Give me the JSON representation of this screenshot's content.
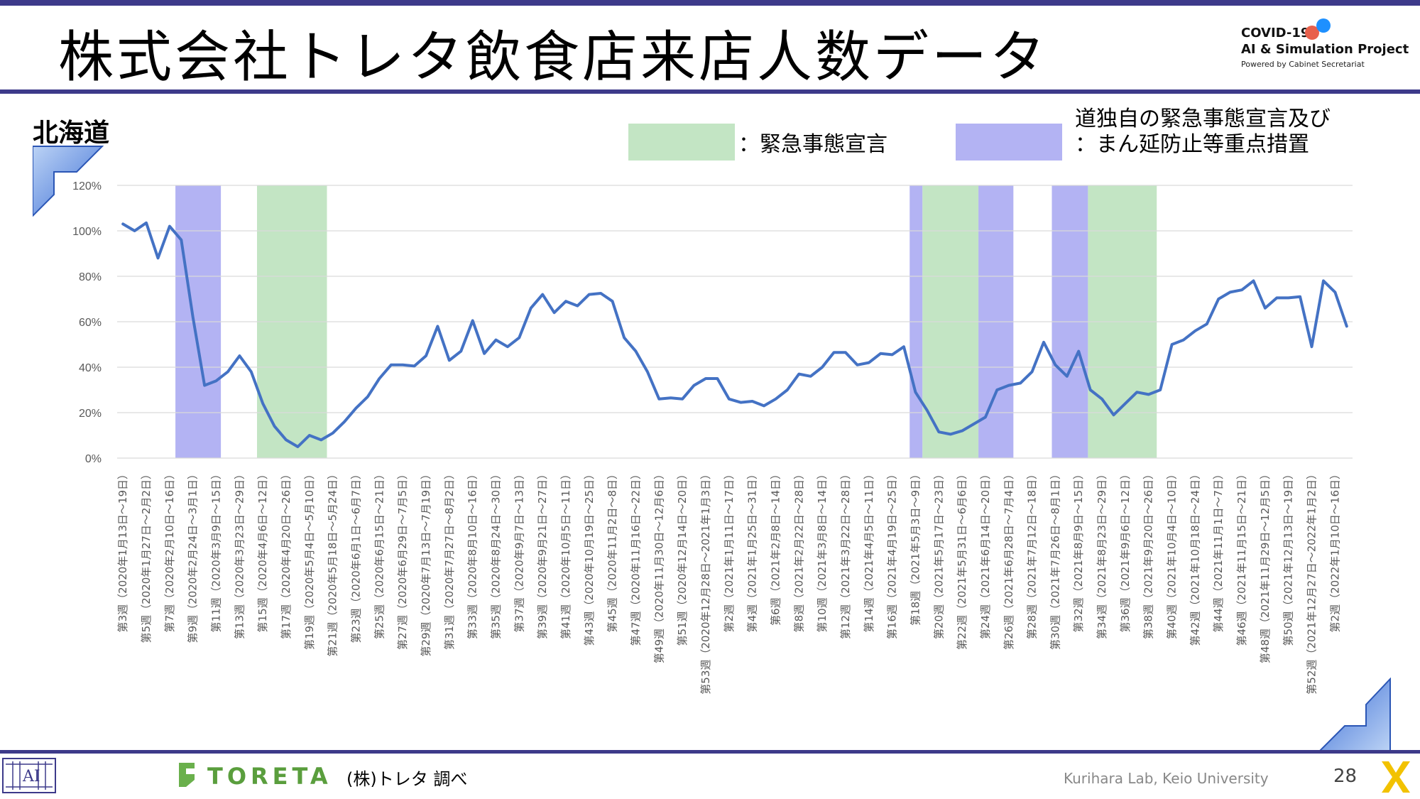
{
  "header": {
    "title": "株式会社トレタ飲食店来店人数データ",
    "project_line1": "COVID-19",
    "project_line2": "AI & Simulation Project",
    "project_line3": "Powered by Cabinet Secretariat"
  },
  "region": "北海道",
  "legend": {
    "emergency_label": "：緊急事態宣言",
    "measures_label_line1": "道独自の緊急事態宣言及び",
    "measures_label_line2": "：まん延防止等重点措置",
    "emergency_color": "#c3e5c4",
    "measures_color": "#b3b3f3"
  },
  "footer": {
    "brand": "TORETA",
    "source": "(株)トレタ 調べ",
    "lab": "Kurihara Lab, Keio University",
    "page": "28"
  },
  "chart_data": {
    "type": "line",
    "title": "",
    "xlabel": "",
    "ylabel": "",
    "ylim": [
      0,
      1.2
    ],
    "yticks": [
      "0%",
      "20%",
      "40%",
      "60%",
      "80%",
      "100%",
      "120%"
    ],
    "grid": true,
    "line_color": "#4472c4",
    "x_tick_labels": [
      "第3週（2020年1月13日～19日）",
      "第5週（2020年1月27日～2月2日）",
      "第7週（2020年2月10日～16日）",
      "第9週（2020年2月24日～3月1日）",
      "第11週（2020年3月9日～15日）",
      "第13週（2020年3月23日～29日）",
      "第15週（2020年4月6日～12日）",
      "第17週（2020年4月20日～26日）",
      "第19週（2020年5月4日～5月10日）",
      "第21週（2020年5月18日～5月24日）",
      "第23週（2020年6月1日～6月7日）",
      "第25週（2020年6月15日～21日）",
      "第27週（2020年6月29日～7月5日）",
      "第29週（2020年7月13日～7月19日）",
      "第31週（2020年7月27日～8月2日）",
      "第33週（2020年8月10日～16日）",
      "第35週（2020年8月24日～30日）",
      "第37週（2020年9月7日～13日）",
      "第39週（2020年9月21日～27日）",
      "第41週（2020年10月5日～11日）",
      "第43週（2020年10月19日～25日）",
      "第45週（2020年11月2日～8日）",
      "第47週（2020年11月16日～22日）",
      "第49週（2020年11月30日～12月6日）",
      "第51週（2020年12月14日～20日）",
      "第53週（2020年12月28日～2021年1月3日）",
      "第2週（2021年1月11日～17日）",
      "第4週（2021年1月25日～31日）",
      "第6週（2021年2月8日～14日）",
      "第8週（2021年2月22日～28日）",
      "第10週（2021年3月8日～14日）",
      "第12週（2021年3月22日～28日）",
      "第14週（2021年4月5日～11日）",
      "第16週（2021年4月19日～25日）",
      "第18週（2021年5月3日～9日）",
      "第20週（2021年5月17日～23日）",
      "第22週（2021年5月31日～6月6日）",
      "第24週（2021年6月14日～20日）",
      "第26週（2021年6月28日～7月4日）",
      "第28週（2021年7月12日～18日）",
      "第30週（2021年7月26日～8月1日）",
      "第32週（2021年8月9日～15日）",
      "第34週（2021年8月23日～29日）",
      "第36週（2021年9月6日～12日）",
      "第38週（2021年9月20日～26日）",
      "第40週（2021年10月4日～10日）",
      "第42週（2021年10月18日～24日）",
      "第44週（2021年11月1日～7日）",
      "第46週（2021年11月15日～21日）",
      "第48週（2021年11月29日～12月5日）",
      "第50週（2021年12月13日～19日）",
      "第52週（2021年12月27日～2022年1月2日）",
      "第2週（2022年1月10日～16日）"
    ],
    "series": [
      {
        "values": [
          1.03,
          1.0,
          1.035,
          0.88,
          1.02,
          0.96,
          0.62,
          0.32,
          0.34,
          0.38,
          0.45,
          0.38,
          0.24,
          0.14,
          0.08,
          0.05,
          0.1,
          0.08,
          0.11,
          0.16,
          0.22,
          0.27,
          0.35,
          0.41,
          0.41,
          0.405,
          0.45,
          0.58,
          0.43,
          0.47,
          0.605,
          0.46,
          0.52,
          0.49,
          0.53,
          0.66,
          0.72,
          0.64,
          0.69,
          0.67,
          0.72,
          0.725,
          0.69,
          0.53,
          0.47,
          0.38,
          0.26,
          0.265,
          0.26,
          0.32,
          0.35,
          0.35,
          0.26,
          0.245,
          0.25,
          0.23,
          0.26,
          0.3,
          0.37,
          0.36,
          0.4,
          0.465,
          0.465,
          0.41,
          0.42,
          0.46,
          0.455,
          0.49,
          0.29,
          0.21,
          0.115,
          0.105,
          0.12,
          0.15,
          0.18,
          0.3,
          0.32,
          0.33,
          0.38,
          0.51,
          0.41,
          0.36,
          0.47,
          0.3,
          0.26,
          0.19,
          0.24,
          0.29,
          0.28,
          0.3,
          0.5,
          0.52,
          0.56,
          0.59,
          0.7,
          0.73,
          0.74,
          0.78,
          0.66,
          0.705,
          0.705,
          0.71,
          0.49,
          0.78,
          0.73,
          0.58
        ]
      }
    ],
    "shaded_periods": [
      {
        "kind": "measures",
        "start": 5.0,
        "end": 8.9
      },
      {
        "kind": "emergency",
        "start": 12.0,
        "end": 18.0
      },
      {
        "kind": "measures",
        "start": 68.0,
        "end": 69.1
      },
      {
        "kind": "emergency",
        "start": 69.1,
        "end": 73.9
      },
      {
        "kind": "measures",
        "start": 73.9,
        "end": 76.9
      },
      {
        "kind": "measures",
        "start": 80.2,
        "end": 83.3
      },
      {
        "kind": "emergency",
        "start": 83.3,
        "end": 89.2
      }
    ]
  }
}
